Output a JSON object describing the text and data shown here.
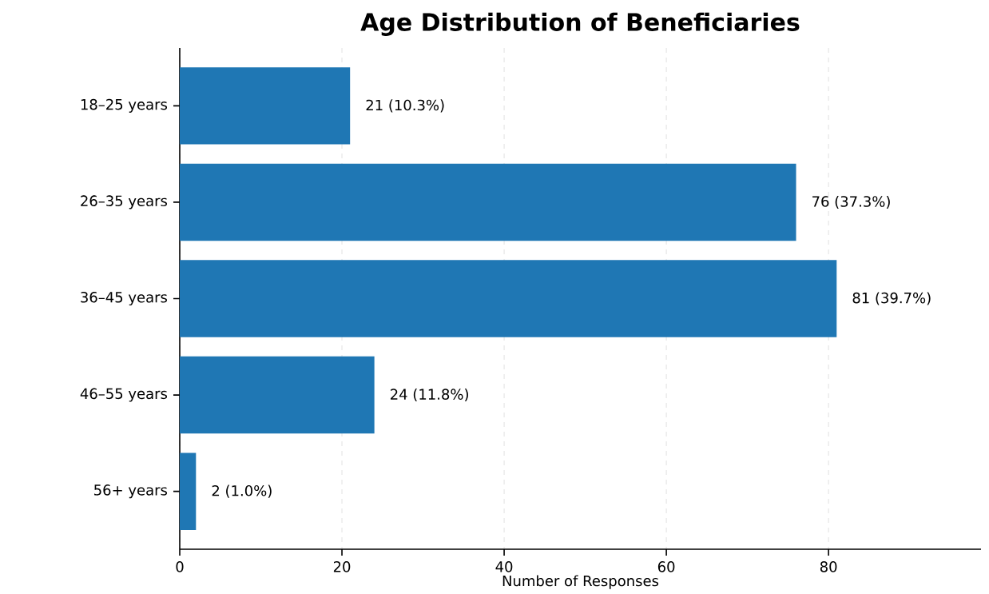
{
  "chart_data": {
    "type": "bar",
    "orientation": "horizontal",
    "title": "Age Distribution of Beneficiaries",
    "xlabel": "Number of Responses",
    "categories": [
      "18–25 years",
      "26–35 years",
      "36–45 years",
      "46–55 years",
      "56+ years"
    ],
    "values": [
      21,
      76,
      81,
      24,
      2
    ],
    "value_labels": [
      "21 (10.3%)",
      "76 (37.3%)",
      "81 (39.7%)",
      "24 (11.8%)",
      "2 (1.0%)"
    ],
    "color": "#1f77b4",
    "xlim": [
      0,
      98.8
    ],
    "xticks": [
      0,
      20,
      40,
      60,
      80
    ],
    "grid": "x"
  }
}
